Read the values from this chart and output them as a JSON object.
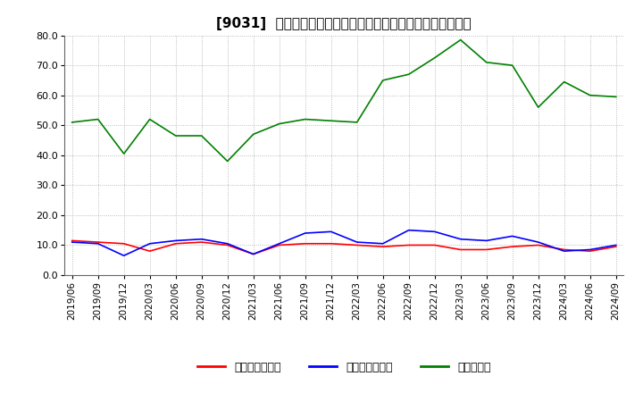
{
  "title": "[9031]  売上債権回転率、買入債務回転率、在庫回転率の推移",
  "x_labels": [
    "2019/06",
    "2019/09",
    "2019/12",
    "2020/03",
    "2020/06",
    "2020/09",
    "2020/12",
    "2021/03",
    "2021/06",
    "2021/09",
    "2021/12",
    "2022/03",
    "2022/06",
    "2022/09",
    "2022/12",
    "2023/03",
    "2023/06",
    "2023/09",
    "2023/12",
    "2024/03",
    "2024/06",
    "2024/09"
  ],
  "売上債権回転率": [
    11.5,
    11.0,
    10.5,
    8.0,
    10.5,
    11.0,
    10.0,
    7.0,
    10.0,
    10.5,
    10.5,
    10.0,
    9.5,
    10.0,
    10.0,
    8.5,
    8.5,
    9.5,
    10.0,
    8.5,
    8.0,
    9.5
  ],
  "買入債務回転率": [
    11.0,
    10.5,
    6.5,
    10.5,
    11.5,
    12.0,
    10.5,
    7.0,
    10.5,
    14.0,
    14.5,
    11.0,
    10.5,
    15.0,
    14.5,
    12.0,
    11.5,
    13.0,
    11.0,
    8.0,
    8.5,
    10.0
  ],
  "在庫回転率": [
    51.0,
    52.0,
    40.5,
    52.0,
    46.5,
    46.5,
    38.0,
    47.0,
    50.5,
    52.0,
    51.5,
    51.0,
    65.0,
    67.0,
    72.5,
    78.5,
    71.0,
    70.0,
    56.0,
    64.5,
    60.0,
    59.5
  ],
  "line_colors": {
    "売上債権回転率": "#ff0000",
    "買入債務回転率": "#0000ff",
    "在庫回転率": "#008000"
  },
  "ylim": [
    0.0,
    80.0
  ],
  "yticks": [
    0.0,
    10.0,
    20.0,
    30.0,
    40.0,
    50.0,
    60.0,
    70.0,
    80.0
  ],
  "background_color": "#ffffff",
  "grid_color": "#aaaaaa",
  "legend_labels": [
    "売上債権回転率",
    "買入債務回転率",
    "在庫回転率"
  ]
}
